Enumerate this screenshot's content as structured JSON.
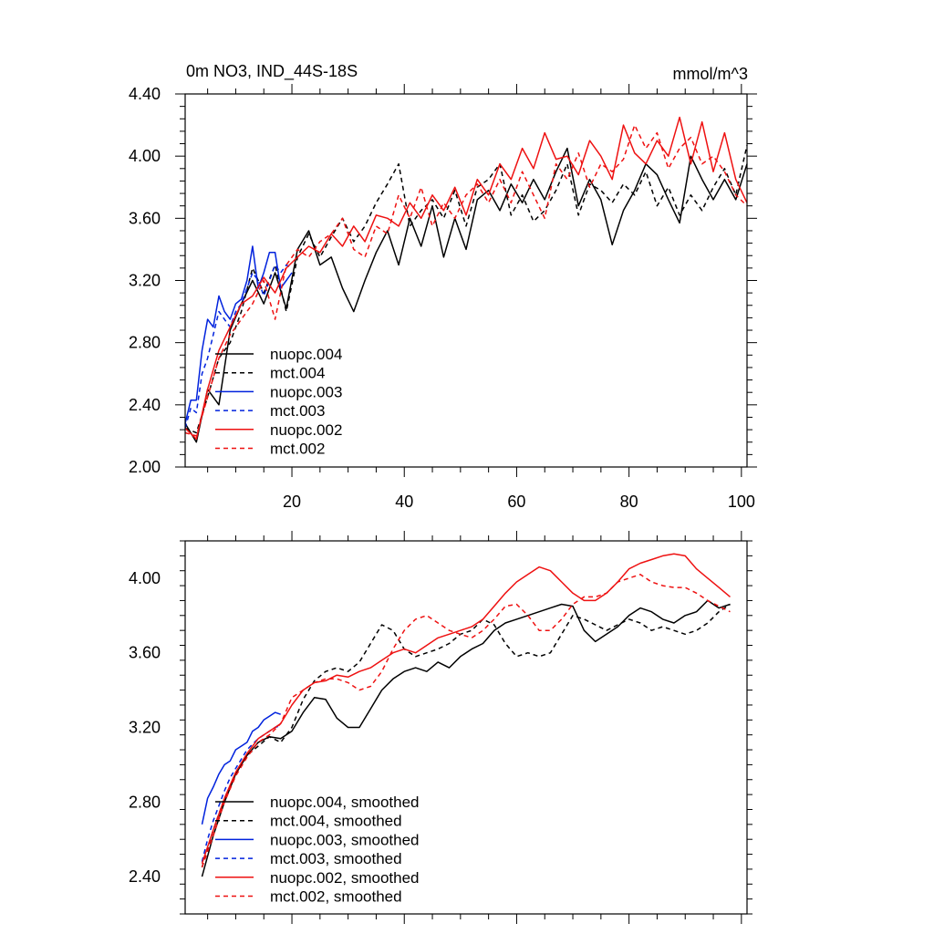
{
  "chart_data": [
    {
      "type": "line",
      "title": "0m NO3, IND_44S-18S",
      "units": "mmol/m^3",
      "xlim": [
        1,
        101
      ],
      "ylim": [
        2.0,
        4.4
      ],
      "x_ticks": [
        20,
        40,
        60,
        80,
        100
      ],
      "x_tick_labels": [
        "20",
        "40",
        "60",
        "80",
        "100"
      ],
      "y_ticks": [
        2.0,
        2.4,
        2.8,
        3.2,
        3.6,
        4.0,
        4.4
      ],
      "y_tick_labels": [
        "2.00",
        "2.40",
        "2.80",
        "3.20",
        "3.60",
        "4.00",
        "4.40"
      ],
      "legend_position": "bottom-left",
      "series": [
        {
          "name": "nuopc.004",
          "color": "#000000",
          "dash": "solid",
          "x": [
            1,
            3,
            5,
            7,
            9,
            11,
            13,
            15,
            17,
            19,
            21,
            23,
            25,
            27,
            29,
            31,
            33,
            35,
            37,
            39,
            41,
            43,
            45,
            47,
            49,
            51,
            53,
            55,
            57,
            59,
            61,
            63,
            65,
            67,
            69,
            71,
            73,
            75,
            77,
            79,
            81,
            83,
            85,
            87,
            89,
            91,
            93,
            95,
            97,
            99,
            101
          ],
          "y": [
            2.28,
            2.16,
            2.5,
            2.4,
            2.88,
            3.05,
            3.2,
            3.05,
            3.25,
            3.02,
            3.4,
            3.52,
            3.3,
            3.35,
            3.15,
            3.0,
            3.2,
            3.38,
            3.52,
            3.3,
            3.6,
            3.42,
            3.68,
            3.35,
            3.6,
            3.4,
            3.72,
            3.78,
            3.65,
            3.82,
            3.7,
            3.85,
            3.72,
            3.9,
            4.05,
            3.68,
            3.85,
            3.72,
            3.43,
            3.65,
            3.78,
            3.95,
            3.88,
            3.72,
            3.57,
            4.0,
            3.85,
            3.72,
            3.85,
            3.72,
            3.95
          ]
        },
        {
          "name": "mct.004",
          "color": "#000000",
          "dash": "dashed",
          "x": [
            1,
            3,
            5,
            7,
            9,
            11,
            13,
            15,
            17,
            19,
            21,
            23,
            25,
            27,
            29,
            31,
            33,
            35,
            37,
            39,
            41,
            43,
            45,
            47,
            49,
            51,
            53,
            55,
            57,
            59,
            61,
            63,
            65,
            67,
            69,
            71,
            73,
            75,
            77,
            79,
            81,
            83,
            85,
            87,
            89,
            91,
            93,
            95,
            97,
            99,
            101
          ],
          "y": [
            2.25,
            2.22,
            2.45,
            2.7,
            2.8,
            3.0,
            3.28,
            3.12,
            3.3,
            3.0,
            3.35,
            3.5,
            3.35,
            3.48,
            3.6,
            3.45,
            3.55,
            3.7,
            3.82,
            3.95,
            3.55,
            3.65,
            3.72,
            3.6,
            3.78,
            3.55,
            3.8,
            3.85,
            3.95,
            3.62,
            3.75,
            3.58,
            3.65,
            3.78,
            3.95,
            3.62,
            3.82,
            3.78,
            3.7,
            3.82,
            3.75,
            3.9,
            3.68,
            3.8,
            3.62,
            3.75,
            3.65,
            3.8,
            3.92,
            3.75,
            4.07
          ]
        },
        {
          "name": "nuopc.003",
          "color": "#0022dd",
          "dash": "solid",
          "x": [
            1,
            2,
            3,
            4,
            5,
            6,
            7,
            8,
            9,
            10,
            11,
            12,
            13,
            14,
            15,
            16,
            17,
            18,
            19,
            20
          ],
          "y": [
            2.28,
            2.43,
            2.43,
            2.75,
            2.95,
            2.9,
            3.1,
            3.0,
            2.95,
            3.05,
            3.08,
            3.2,
            3.42,
            3.15,
            3.25,
            3.38,
            3.38,
            3.15,
            3.2,
            3.25
          ]
        },
        {
          "name": "mct.003",
          "color": "#0022dd",
          "dash": "dashed",
          "x": [
            1,
            2,
            3,
            4,
            5,
            6,
            7,
            8,
            9,
            10,
            11,
            12,
            13,
            14,
            15,
            16,
            17,
            18,
            19,
            20
          ],
          "y": [
            2.25,
            2.38,
            2.35,
            2.6,
            2.7,
            2.85,
            3.0,
            2.95,
            2.9,
            3.0,
            3.05,
            3.15,
            3.25,
            3.2,
            3.1,
            3.2,
            3.3,
            3.25,
            3.3,
            3.28
          ]
        },
        {
          "name": "nuopc.002",
          "color": "#ee1111",
          "dash": "solid",
          "x": [
            1,
            3,
            5,
            7,
            9,
            11,
            13,
            15,
            17,
            19,
            21,
            23,
            25,
            27,
            29,
            31,
            33,
            35,
            37,
            39,
            41,
            43,
            45,
            47,
            49,
            51,
            53,
            55,
            57,
            59,
            61,
            63,
            65,
            67,
            69,
            71,
            73,
            75,
            77,
            79,
            81,
            83,
            85,
            87,
            89,
            91,
            93,
            95,
            97,
            99,
            101
          ],
          "y": [
            2.25,
            2.18,
            2.5,
            2.75,
            2.9,
            3.05,
            3.1,
            3.22,
            3.12,
            3.28,
            3.35,
            3.42,
            3.38,
            3.5,
            3.42,
            3.55,
            3.45,
            3.62,
            3.6,
            3.55,
            3.7,
            3.6,
            3.75,
            3.65,
            3.8,
            3.62,
            3.85,
            3.75,
            3.95,
            3.85,
            4.05,
            3.92,
            4.15,
            3.98,
            4.0,
            3.88,
            4.1,
            4.0,
            3.85,
            4.2,
            4.02,
            3.95,
            4.1,
            4.0,
            4.25,
            3.95,
            4.22,
            3.9,
            4.15,
            3.85,
            3.7
          ]
        },
        {
          "name": "mct.002",
          "color": "#ee1111",
          "dash": "dashed",
          "x": [
            1,
            3,
            5,
            7,
            9,
            11,
            13,
            15,
            17,
            19,
            21,
            23,
            25,
            27,
            29,
            31,
            33,
            35,
            37,
            39,
            41,
            43,
            45,
            47,
            49,
            51,
            53,
            55,
            57,
            59,
            61,
            63,
            65,
            67,
            69,
            71,
            73,
            75,
            77,
            79,
            81,
            83,
            85,
            87,
            89,
            91,
            93,
            95,
            97,
            99,
            101
          ],
          "y": [
            2.22,
            2.2,
            2.45,
            2.7,
            2.85,
            2.95,
            3.05,
            3.2,
            2.95,
            3.3,
            3.4,
            3.35,
            3.45,
            3.5,
            3.6,
            3.4,
            3.35,
            3.55,
            3.5,
            3.75,
            3.6,
            3.8,
            3.55,
            3.7,
            3.6,
            3.75,
            3.82,
            3.7,
            3.85,
            3.7,
            3.9,
            3.75,
            3.6,
            3.95,
            3.85,
            4.02,
            3.8,
            3.95,
            3.9,
            3.98,
            4.2,
            4.05,
            4.15,
            3.92,
            4.05,
            4.12,
            3.95,
            4.0,
            3.9,
            3.75,
            3.68
          ]
        }
      ]
    },
    {
      "type": "line",
      "xlim": [
        1,
        101
      ],
      "ylim": [
        2.2,
        4.2
      ],
      "x_ticks": [
        20,
        40,
        60,
        80,
        100
      ],
      "y_ticks": [
        2.4,
        2.8,
        3.2,
        3.6,
        4.0
      ],
      "y_tick_labels": [
        "2.40",
        "2.80",
        "3.20",
        "3.60",
        "4.00"
      ],
      "legend_position": "bottom-left",
      "series": [
        {
          "name": "nuopc.004, smoothed",
          "color": "#000000",
          "dash": "solid",
          "x": [
            4,
            6,
            8,
            10,
            12,
            14,
            16,
            18,
            20,
            22,
            24,
            26,
            28,
            30,
            32,
            34,
            36,
            38,
            40,
            42,
            44,
            46,
            48,
            50,
            52,
            54,
            56,
            58,
            60,
            62,
            64,
            66,
            68,
            70,
            72,
            74,
            76,
            78,
            80,
            82,
            84,
            86,
            88,
            90,
            92,
            94,
            96,
            98
          ],
          "y": [
            2.4,
            2.62,
            2.8,
            2.95,
            3.05,
            3.12,
            3.15,
            3.14,
            3.18,
            3.28,
            3.36,
            3.35,
            3.25,
            3.2,
            3.2,
            3.3,
            3.4,
            3.46,
            3.5,
            3.52,
            3.5,
            3.55,
            3.52,
            3.58,
            3.62,
            3.65,
            3.72,
            3.76,
            3.78,
            3.8,
            3.82,
            3.84,
            3.86,
            3.85,
            3.72,
            3.66,
            3.7,
            3.74,
            3.8,
            3.84,
            3.82,
            3.78,
            3.76,
            3.8,
            3.82,
            3.88,
            3.84,
            3.86
          ]
        },
        {
          "name": "mct.004, smoothed",
          "color": "#000000",
          "dash": "dashed",
          "x": [
            4,
            6,
            8,
            10,
            12,
            14,
            16,
            18,
            20,
            22,
            24,
            26,
            28,
            30,
            32,
            34,
            36,
            38,
            40,
            42,
            44,
            46,
            48,
            50,
            52,
            54,
            56,
            58,
            60,
            62,
            64,
            66,
            68,
            70,
            72,
            74,
            76,
            78,
            80,
            82,
            84,
            86,
            88,
            90,
            92,
            94,
            96,
            98
          ],
          "y": [
            2.45,
            2.65,
            2.82,
            2.95,
            3.05,
            3.1,
            3.15,
            3.12,
            3.2,
            3.35,
            3.45,
            3.5,
            3.52,
            3.5,
            3.55,
            3.65,
            3.75,
            3.72,
            3.62,
            3.58,
            3.6,
            3.62,
            3.65,
            3.7,
            3.72,
            3.78,
            3.75,
            3.65,
            3.58,
            3.6,
            3.58,
            3.6,
            3.7,
            3.8,
            3.78,
            3.75,
            3.72,
            3.75,
            3.78,
            3.76,
            3.72,
            3.74,
            3.72,
            3.7,
            3.72,
            3.76,
            3.82,
            3.86
          ]
        },
        {
          "name": "nuopc.003, smoothed",
          "color": "#0022dd",
          "dash": "solid",
          "x": [
            4,
            5,
            6,
            7,
            8,
            9,
            10,
            11,
            12,
            13,
            14,
            15,
            16,
            17,
            18
          ],
          "y": [
            2.68,
            2.82,
            2.88,
            2.95,
            3.0,
            3.02,
            3.08,
            3.1,
            3.12,
            3.18,
            3.2,
            3.24,
            3.26,
            3.28,
            3.27
          ]
        },
        {
          "name": "mct.003, smoothed",
          "color": "#0022dd",
          "dash": "dashed",
          "x": [
            4,
            5,
            6,
            7,
            8,
            9,
            10,
            11,
            12,
            13,
            14,
            15,
            16,
            17,
            18
          ],
          "y": [
            2.48,
            2.6,
            2.7,
            2.78,
            2.86,
            2.93,
            2.98,
            3.03,
            3.08,
            3.11,
            3.14,
            3.16,
            3.18,
            3.2,
            3.21
          ]
        },
        {
          "name": "nuopc.002, smoothed",
          "color": "#ee1111",
          "dash": "solid",
          "x": [
            4,
            6,
            8,
            10,
            12,
            14,
            16,
            18,
            20,
            22,
            24,
            26,
            28,
            30,
            32,
            34,
            36,
            38,
            40,
            42,
            44,
            46,
            48,
            50,
            52,
            54,
            56,
            58,
            60,
            62,
            64,
            66,
            68,
            70,
            72,
            74,
            76,
            78,
            80,
            82,
            84,
            86,
            88,
            90,
            92,
            94,
            96,
            98
          ],
          "y": [
            2.47,
            2.65,
            2.82,
            2.96,
            3.06,
            3.14,
            3.18,
            3.22,
            3.32,
            3.4,
            3.44,
            3.45,
            3.48,
            3.47,
            3.5,
            3.52,
            3.56,
            3.6,
            3.62,
            3.6,
            3.64,
            3.68,
            3.7,
            3.72,
            3.74,
            3.78,
            3.85,
            3.92,
            3.98,
            4.02,
            4.06,
            4.04,
            3.98,
            3.92,
            3.88,
            3.88,
            3.92,
            3.98,
            4.05,
            4.08,
            4.1,
            4.12,
            4.13,
            4.12,
            4.05,
            4.0,
            3.95,
            3.9
          ]
        },
        {
          "name": "mct.002, smoothed",
          "color": "#ee1111",
          "dash": "dashed",
          "x": [
            4,
            6,
            8,
            10,
            12,
            14,
            16,
            18,
            20,
            22,
            24,
            26,
            28,
            30,
            32,
            34,
            36,
            38,
            40,
            42,
            44,
            46,
            48,
            50,
            52,
            54,
            56,
            58,
            60,
            62,
            64,
            66,
            68,
            70,
            72,
            74,
            76,
            78,
            80,
            82,
            84,
            86,
            88,
            90,
            92,
            94,
            96,
            98
          ],
          "y": [
            2.45,
            2.62,
            2.8,
            2.94,
            3.04,
            3.12,
            3.16,
            3.22,
            3.36,
            3.4,
            3.44,
            3.46,
            3.46,
            3.44,
            3.4,
            3.42,
            3.5,
            3.62,
            3.72,
            3.78,
            3.8,
            3.76,
            3.72,
            3.7,
            3.68,
            3.72,
            3.78,
            3.85,
            3.86,
            3.8,
            3.72,
            3.72,
            3.78,
            3.86,
            3.9,
            3.9,
            3.92,
            3.98,
            4.0,
            4.02,
            3.98,
            3.96,
            3.95,
            3.95,
            3.92,
            3.88,
            3.85,
            3.82
          ]
        }
      ]
    }
  ]
}
